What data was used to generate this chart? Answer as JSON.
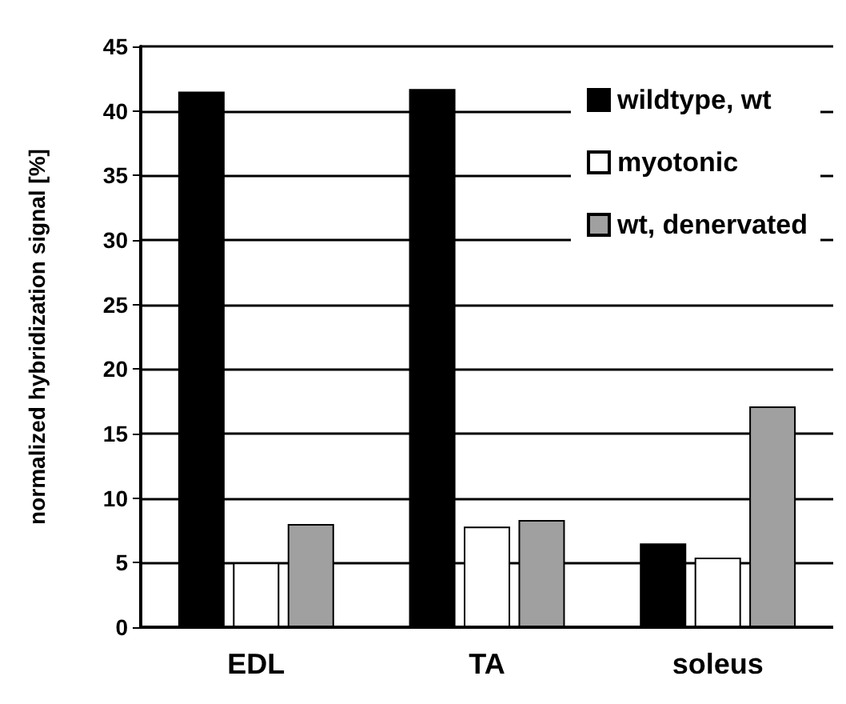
{
  "chart_data": {
    "type": "bar",
    "ylabel": "normalized hybridization signal [%]",
    "categories": [
      "EDL",
      "TA",
      "soleus"
    ],
    "series": [
      {
        "name": "wildtype, wt",
        "color": "#000000",
        "values": [
          41.5,
          41.7,
          6.5
        ]
      },
      {
        "name": "myotonic",
        "color": "#ffffff",
        "values": [
          5.0,
          7.8,
          5.4
        ]
      },
      {
        "name": "wt, denervated",
        "color": "#a0a0a0",
        "values": [
          8.0,
          8.3,
          17.1
        ]
      }
    ],
    "ylim": [
      0,
      45
    ],
    "yticks": [
      0,
      5,
      10,
      15,
      20,
      25,
      30,
      35,
      40,
      45
    ],
    "grid": "y",
    "legend": "top right"
  }
}
